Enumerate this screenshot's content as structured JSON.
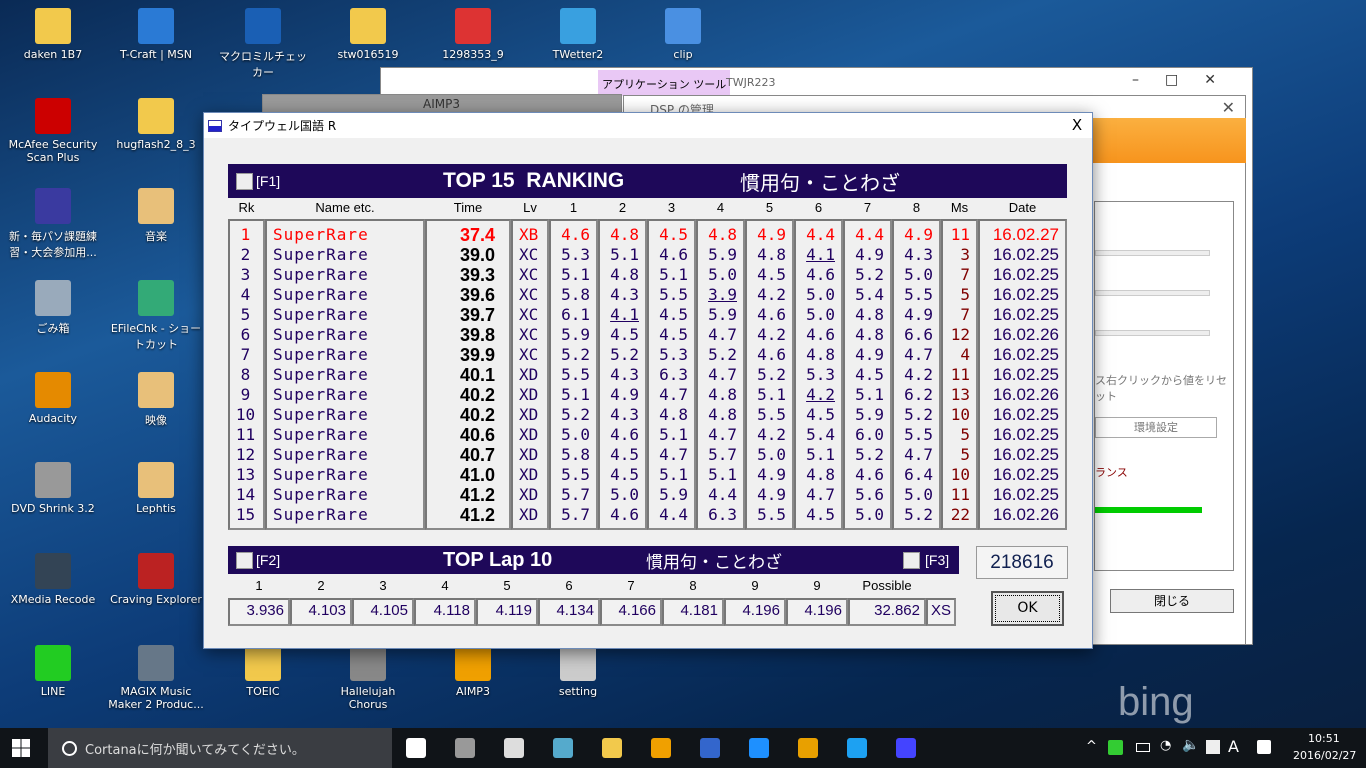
{
  "desktop": {
    "icons": [
      {
        "label": "daken 1B7",
        "color": "#f2c94c"
      },
      {
        "label": "T-Craft | MSN",
        "color": "#2a7ad5"
      },
      {
        "label": "マクロミルチェッカー",
        "color": "#1a5fb4"
      },
      {
        "label": "stw016519",
        "color": "#f2c94c"
      },
      {
        "label": "1298353_9",
        "color": "#d33"
      },
      {
        "label": "TWetter2",
        "color": "#39a0e0"
      },
      {
        "label": "clip",
        "color": "#4a90e2"
      },
      {
        "label": "McAfee Security Scan Plus",
        "color": "#c00"
      },
      {
        "label": "hugflash2_8_3",
        "color": "#f2c94c"
      },
      {
        "label": "新・毎パソ課題練習・大会参加用...",
        "color": "#3a3aa0"
      },
      {
        "label": "音楽",
        "color": "#e8c07a"
      },
      {
        "label": "ごみ箱",
        "color": "#9ab"
      },
      {
        "label": "EFileChk - ショートカット",
        "color": "#3a7"
      },
      {
        "label": "Audacity",
        "color": "#e58a00"
      },
      {
        "label": "映像",
        "color": "#e8c07a"
      },
      {
        "label": "DVD Shrink 3.2",
        "color": "#999"
      },
      {
        "label": "Lephtis",
        "color": "#e8c07a"
      },
      {
        "label": "XMedia Recode",
        "color": "#345"
      },
      {
        "label": "Craving Explorer",
        "color": "#b22"
      },
      {
        "label": "LINE",
        "color": "#2c2"
      },
      {
        "label": "MAGIX Music Maker 2 Produc...",
        "color": "#678"
      },
      {
        "label": "TOEIC",
        "color": "#f2c94c"
      },
      {
        "label": "Hallelujah Chorus",
        "color": "#888"
      },
      {
        "label": "AIMP3",
        "color": "#f0a000"
      },
      {
        "label": "setting",
        "color": "#ccc"
      }
    ],
    "watermark": "bing"
  },
  "back_windows": {
    "explorer_ribbon_tab": "アプリケーション ツール",
    "explorer_title": "TWJR223",
    "aimp_title": "AIMP3",
    "dsp_title": "DSP の管理",
    "dsp_reset_hint": "ス右クリックから値をリセット",
    "dsp_settings_button": "環境設定",
    "dsp_balance_label": "ランス",
    "dsp_close_button": "閉じる",
    "dsp_slider_levels": [
      0.55,
      0.05,
      0.3
    ],
    "dsp_balance_level": 0.5
  },
  "dialog": {
    "title": "タイプウェル国語 R",
    "close": "X",
    "ranking": {
      "f1": "[F1]",
      "title": "TOP 15  RANKING",
      "category": "慣用句・ことわざ",
      "headers": [
        "Rk",
        "Name etc.",
        "Time",
        "Lv",
        "1",
        "2",
        "3",
        "4",
        "5",
        "6",
        "7",
        "8",
        "Ms",
        "Date"
      ],
      "rows": [
        [
          "1",
          "SuperRare",
          "37.4",
          "XB",
          "4.6",
          "4.8",
          "4.5",
          "4.8",
          "4.9",
          "4.4",
          "4.4",
          "4.9",
          "11",
          "16.02.27"
        ],
        [
          "2",
          "SuperRare",
          "39.0",
          "XC",
          "5.3",
          "5.1",
          "4.6",
          "5.9",
          "4.8",
          "4.1",
          "4.9",
          "4.3",
          "3",
          "16.02.25"
        ],
        [
          "3",
          "SuperRare",
          "39.3",
          "XC",
          "5.1",
          "4.8",
          "5.1",
          "5.0",
          "4.5",
          "4.6",
          "5.2",
          "5.0",
          "7",
          "16.02.25"
        ],
        [
          "4",
          "SuperRare",
          "39.6",
          "XC",
          "5.8",
          "4.3",
          "5.5",
          "3.9",
          "4.2",
          "5.0",
          "5.4",
          "5.5",
          "5",
          "16.02.25"
        ],
        [
          "5",
          "SuperRare",
          "39.7",
          "XC",
          "6.1",
          "4.1",
          "4.5",
          "5.9",
          "4.6",
          "5.0",
          "4.8",
          "4.9",
          "7",
          "16.02.25"
        ],
        [
          "6",
          "SuperRare",
          "39.8",
          "XC",
          "5.9",
          "4.5",
          "4.5",
          "4.7",
          "4.2",
          "4.6",
          "4.8",
          "6.6",
          "12",
          "16.02.26"
        ],
        [
          "7",
          "SuperRare",
          "39.9",
          "XC",
          "5.2",
          "5.2",
          "5.3",
          "5.2",
          "4.6",
          "4.8",
          "4.9",
          "4.7",
          "4",
          "16.02.25"
        ],
        [
          "8",
          "SuperRare",
          "40.1",
          "XD",
          "5.5",
          "4.3",
          "6.3",
          "4.7",
          "5.2",
          "5.3",
          "4.5",
          "4.2",
          "11",
          "16.02.25"
        ],
        [
          "9",
          "SuperRare",
          "40.2",
          "XD",
          "5.1",
          "4.9",
          "4.7",
          "4.8",
          "5.1",
          "4.2",
          "5.1",
          "6.2",
          "13",
          "16.02.26"
        ],
        [
          "10",
          "SuperRare",
          "40.2",
          "XD",
          "5.2",
          "4.3",
          "4.8",
          "4.8",
          "5.5",
          "4.5",
          "5.9",
          "5.2",
          "10",
          "16.02.25"
        ],
        [
          "11",
          "SuperRare",
          "40.6",
          "XD",
          "5.0",
          "4.6",
          "5.1",
          "4.7",
          "4.2",
          "5.4",
          "6.0",
          "5.5",
          "5",
          "16.02.25"
        ],
        [
          "12",
          "SuperRare",
          "40.7",
          "XD",
          "5.8",
          "4.5",
          "4.7",
          "5.7",
          "5.0",
          "5.1",
          "5.2",
          "4.7",
          "5",
          "16.02.25"
        ],
        [
          "13",
          "SuperRare",
          "41.0",
          "XD",
          "5.5",
          "4.5",
          "5.1",
          "5.1",
          "4.9",
          "4.8",
          "4.6",
          "6.4",
          "10",
          "16.02.25"
        ],
        [
          "14",
          "SuperRare",
          "41.2",
          "XD",
          "5.7",
          "5.0",
          "5.9",
          "4.4",
          "4.9",
          "4.7",
          "5.6",
          "5.0",
          "11",
          "16.02.25"
        ],
        [
          "15",
          "SuperRare",
          "41.2",
          "XD",
          "5.7",
          "4.6",
          "4.4",
          "6.3",
          "5.5",
          "4.5",
          "5.0",
          "5.2",
          "22",
          "16.02.26"
        ]
      ],
      "underlined": [
        [
          1,
          9
        ],
        [
          3,
          7
        ],
        [
          4,
          5
        ],
        [
          8,
          9
        ]
      ],
      "colors": {
        "bar": "#1e0859",
        "text": "#200060",
        "highlight": "#ff0000",
        "miss": "#800000",
        "time": "#000000"
      }
    },
    "laps": {
      "f2": "[F2]",
      "title": "TOP Lap 10",
      "category": "慣用句・ことわざ",
      "f3": "[F3]",
      "headers": [
        "1",
        "2",
        "3",
        "4",
        "5",
        "6",
        "7",
        "8",
        "9",
        "9",
        "Possible"
      ],
      "values": [
        "3.936",
        "4.103",
        "4.105",
        "4.118",
        "4.119",
        "4.134",
        "4.166",
        "4.181",
        "4.196",
        "4.196",
        "32.862",
        "XS"
      ]
    },
    "score": "218616",
    "ok": "OK"
  },
  "taskbar": {
    "search_placeholder": "Cortanaに何か聞いてみてください。",
    "ime": "A",
    "time": "10:51",
    "date": "2016/02/27"
  }
}
